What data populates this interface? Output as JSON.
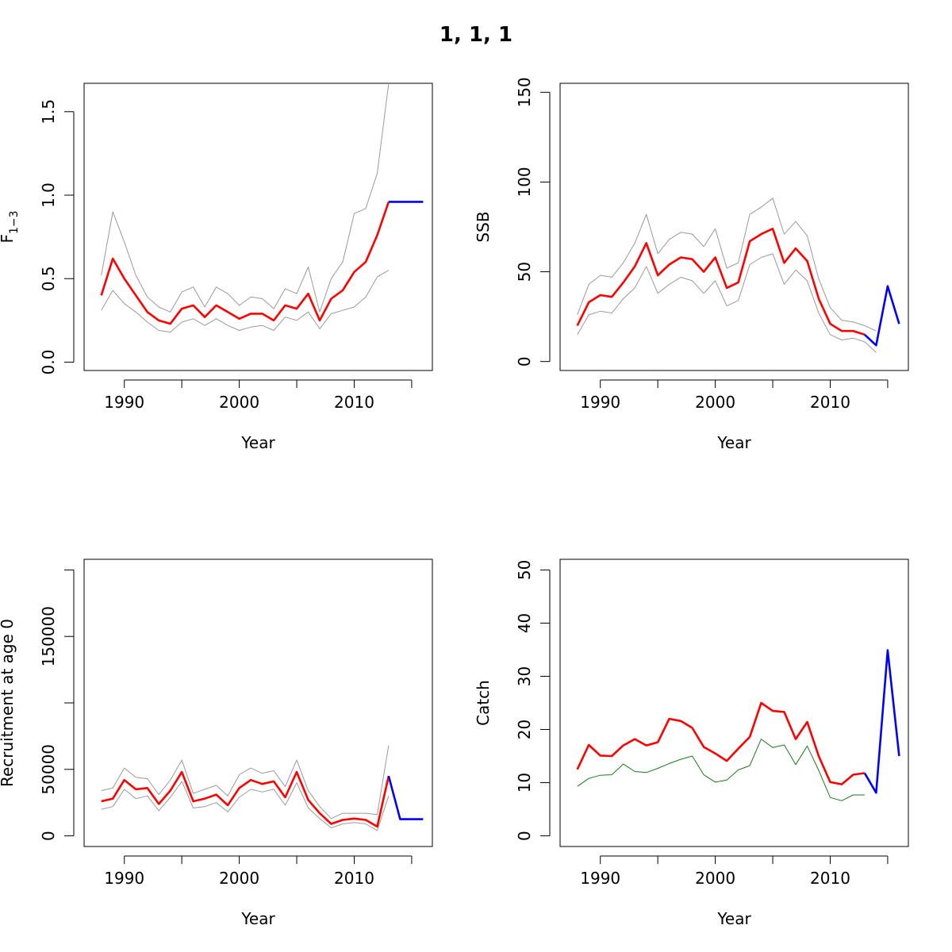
{
  "figure": {
    "title": "1, 1, 1"
  },
  "colors": {
    "estimate": "#ff0000",
    "projection": "#0000ff",
    "ci": "#9a9a9a",
    "observed": "#1a7a1a"
  },
  "chart_data": [
    {
      "type": "line",
      "ylabel": "F",
      "ylabel_sub": "1−3",
      "xlabel": "Year",
      "xlim": [
        1986.5,
        2016.8
      ],
      "ylim": [
        -0.05,
        1.67
      ],
      "xticks": [
        1990,
        1995,
        2000,
        2005,
        2010,
        2015
      ],
      "xtick_labels": [
        "1990",
        "",
        "2000",
        "",
        "2010",
        ""
      ],
      "yticks": [
        0,
        0.5,
        1,
        1.5
      ],
      "ytick_labels": [
        "0.0",
        "0.5",
        "1.0",
        "1.5"
      ],
      "series": [
        {
          "role": "upper",
          "color": "ci",
          "x": [
            1988,
            1989,
            1990,
            1991,
            1992,
            1993,
            1994,
            1995,
            1996,
            1997,
            1998,
            1999,
            2000,
            2001,
            2002,
            2003,
            2004,
            2005,
            2006,
            2007,
            2008,
            2009,
            2010,
            2011,
            2012,
            2013
          ],
          "y": [
            0.52,
            0.9,
            0.72,
            0.52,
            0.39,
            0.33,
            0.3,
            0.42,
            0.45,
            0.33,
            0.45,
            0.41,
            0.34,
            0.39,
            0.38,
            0.32,
            0.44,
            0.41,
            0.57,
            0.3,
            0.5,
            0.6,
            0.89,
            0.92,
            1.13,
            1.67
          ]
        },
        {
          "role": "lower",
          "color": "ci",
          "x": [
            1988,
            1989,
            1990,
            1991,
            1992,
            1993,
            1994,
            1995,
            1996,
            1997,
            1998,
            1999,
            2000,
            2001,
            2002,
            2003,
            2004,
            2005,
            2006,
            2007,
            2008,
            2009,
            2010,
            2011,
            2012,
            2013
          ],
          "y": [
            0.31,
            0.43,
            0.35,
            0.3,
            0.24,
            0.19,
            0.18,
            0.24,
            0.26,
            0.22,
            0.26,
            0.22,
            0.19,
            0.21,
            0.22,
            0.19,
            0.27,
            0.25,
            0.3,
            0.2,
            0.29,
            0.31,
            0.33,
            0.39,
            0.51,
            0.55
          ]
        },
        {
          "role": "estimate",
          "color": "estimate",
          "x": [
            1988,
            1989,
            1990,
            1991,
            1992,
            1993,
            1994,
            1995,
            1996,
            1997,
            1998,
            1999,
            2000,
            2001,
            2002,
            2003,
            2004,
            2005,
            2006,
            2007,
            2008,
            2009,
            2010,
            2011,
            2012,
            2013
          ],
          "y": [
            0.4,
            0.62,
            0.5,
            0.4,
            0.3,
            0.25,
            0.23,
            0.32,
            0.34,
            0.27,
            0.34,
            0.3,
            0.26,
            0.29,
            0.29,
            0.25,
            0.34,
            0.32,
            0.41,
            0.25,
            0.38,
            0.43,
            0.54,
            0.6,
            0.76,
            0.96
          ]
        },
        {
          "role": "projection",
          "color": "projection",
          "x": [
            2013,
            2014,
            2015,
            2016
          ],
          "y": [
            0.96,
            0.96,
            0.96,
            0.96
          ]
        }
      ]
    },
    {
      "type": "line",
      "ylabel": "SSB",
      "xlabel": "Year",
      "xlim": [
        1986.5,
        2016.8
      ],
      "ylim": [
        -5,
        155
      ],
      "xticks": [
        1990,
        1995,
        2000,
        2005,
        2010,
        2015
      ],
      "xtick_labels": [
        "1990",
        "",
        "2000",
        "",
        "2010",
        ""
      ],
      "yticks": [
        0,
        50,
        100,
        150
      ],
      "ytick_labels": [
        "0",
        "50",
        "100",
        "150"
      ],
      "series": [
        {
          "role": "upper",
          "color": "ci",
          "x": [
            1988,
            1989,
            1990,
            1991,
            1992,
            1993,
            1994,
            1995,
            1996,
            1997,
            1998,
            1999,
            2000,
            2001,
            2002,
            2003,
            2004,
            2005,
            2006,
            2007,
            2008,
            2009,
            2010,
            2011,
            2012,
            2013,
            2014
          ],
          "y": [
            26,
            43,
            48,
            47,
            55,
            66,
            82,
            60,
            68,
            72,
            71,
            64,
            74,
            52,
            55,
            82,
            86,
            91,
            71,
            78,
            70,
            46,
            30,
            23,
            22,
            20,
            17
          ]
        },
        {
          "role": "lower",
          "color": "ci",
          "x": [
            1988,
            1989,
            1990,
            1991,
            1992,
            1993,
            1994,
            1995,
            1996,
            1997,
            1998,
            1999,
            2000,
            2001,
            2002,
            2003,
            2004,
            2005,
            2006,
            2007,
            2008,
            2009,
            2010,
            2011,
            2012,
            2013,
            2014
          ],
          "y": [
            15,
            26,
            28,
            27,
            35,
            41,
            53,
            38,
            43,
            47,
            45,
            38,
            45,
            31,
            34,
            54,
            58,
            60,
            43,
            51,
            45,
            27,
            15,
            12,
            13,
            11,
            5
          ]
        },
        {
          "role": "estimate",
          "color": "estimate",
          "x": [
            1988,
            1989,
            1990,
            1991,
            1992,
            1993,
            1994,
            1995,
            1996,
            1997,
            1998,
            1999,
            2000,
            2001,
            2002,
            2003,
            2004,
            2005,
            2006,
            2007,
            2008,
            2009,
            2010,
            2011,
            2012,
            2013
          ],
          "y": [
            20,
            33,
            37,
            36,
            44,
            53,
            66,
            48,
            54,
            58,
            57,
            50,
            58,
            41,
            44,
            67,
            71,
            74,
            55,
            63,
            56,
            35,
            21,
            17,
            17,
            15
          ]
        },
        {
          "role": "projection",
          "color": "projection",
          "x": [
            2013,
            2014,
            2015,
            2016
          ],
          "y": [
            15,
            9,
            42,
            21
          ]
        }
      ]
    },
    {
      "type": "line",
      "ylabel": "Recruitment at age 0",
      "xlabel": "Year",
      "xlim": [
        1986.5,
        2016.8
      ],
      "ylim": [
        -8000,
        208000
      ],
      "xticks": [
        1990,
        1995,
        2000,
        2005,
        2010,
        2015
      ],
      "xtick_labels": [
        "1990",
        "",
        "2000",
        "",
        "2010",
        ""
      ],
      "yticks": [
        0,
        50000,
        100000,
        150000,
        200000
      ],
      "ytick_labels": [
        "0",
        "50000",
        "",
        "150000",
        ""
      ],
      "series": [
        {
          "role": "upper",
          "color": "ci",
          "x": [
            1988,
            1989,
            1990,
            1991,
            1992,
            1993,
            1994,
            1995,
            1996,
            1997,
            1998,
            1999,
            2000,
            2001,
            2002,
            2003,
            2004,
            2005,
            2006,
            2007,
            2008,
            2009,
            2010,
            2011,
            2012,
            2013
          ],
          "y": [
            34000,
            36000,
            51000,
            44000,
            43000,
            31000,
            42000,
            57000,
            32000,
            35000,
            38000,
            30000,
            46000,
            51000,
            47000,
            49000,
            37000,
            57000,
            34000,
            22000,
            13000,
            17000,
            17000,
            17000,
            16000,
            68000
          ]
        },
        {
          "role": "lower",
          "color": "ci",
          "x": [
            1988,
            1989,
            1990,
            1991,
            1992,
            1993,
            1994,
            1995,
            1996,
            1997,
            1998,
            1999,
            2000,
            2001,
            2002,
            2003,
            2004,
            2005,
            2006,
            2007,
            2008,
            2009,
            2010,
            2011,
            2012,
            2013
          ],
          "y": [
            20000,
            22000,
            35000,
            28000,
            30000,
            19000,
            29000,
            41000,
            21000,
            22000,
            25000,
            18000,
            29000,
            35000,
            33000,
            35000,
            23000,
            40000,
            21000,
            13000,
            6000,
            9000,
            10000,
            9000,
            4000,
            30000
          ]
        },
        {
          "role": "estimate",
          "color": "estimate",
          "x": [
            1988,
            1989,
            1990,
            1991,
            1992,
            1993,
            1994,
            1995,
            1996,
            1997,
            1998,
            1999,
            2000,
            2001,
            2002,
            2003,
            2004,
            2005,
            2006,
            2007,
            2008,
            2009,
            2010,
            2011,
            2012,
            2013
          ],
          "y": [
            26000,
            28000,
            42000,
            35000,
            36000,
            24000,
            34000,
            48000,
            26000,
            28000,
            31000,
            23000,
            36000,
            42000,
            39000,
            41000,
            29000,
            48000,
            27000,
            17000,
            9000,
            12000,
            13000,
            12000,
            7000,
            45000
          ]
        },
        {
          "role": "projection",
          "color": "projection",
          "x": [
            2013,
            2014,
            2015,
            2016
          ],
          "y": [
            45000,
            12500,
            12500,
            12500
          ]
        }
      ]
    },
    {
      "type": "line",
      "ylabel": "Catch",
      "xlabel": "Year",
      "xlim": [
        1986.5,
        2016.8
      ],
      "ylim": [
        -2,
        52
      ],
      "xticks": [
        1990,
        1995,
        2000,
        2005,
        2010,
        2015
      ],
      "xtick_labels": [
        "1990",
        "",
        "2000",
        "",
        "2010",
        ""
      ],
      "yticks": [
        0,
        10,
        20,
        30,
        40,
        50
      ],
      "ytick_labels": [
        "0",
        "10",
        "20",
        "30",
        "40",
        "50"
      ],
      "series": [
        {
          "role": "observed",
          "color": "observed",
          "x": [
            1988,
            1989,
            1990,
            1991,
            1992,
            1993,
            1994,
            1995,
            1996,
            1997,
            1998,
            1999,
            2000,
            2001,
            2002,
            2003,
            2004,
            2005,
            2006,
            2007,
            2008,
            2009,
            2010,
            2011,
            2012,
            2013
          ],
          "y": [
            9.3,
            10.8,
            11.4,
            11.5,
            13.5,
            12.1,
            11.9,
            12.7,
            13.6,
            14.4,
            15.0,
            11.5,
            10.1,
            10.5,
            12.4,
            13.2,
            18.2,
            16.6,
            17.1,
            13.4,
            16.9,
            12.3,
            7.2,
            6.6,
            7.7,
            7.7
          ]
        },
        {
          "role": "estimate",
          "color": "estimate",
          "x": [
            1988,
            1989,
            1990,
            1991,
            1992,
            1993,
            1994,
            1995,
            1996,
            1997,
            1998,
            1999,
            2000,
            2001,
            2002,
            2003,
            2004,
            2005,
            2006,
            2007,
            2008,
            2009,
            2010,
            2011,
            2012,
            2013
          ],
          "y": [
            12.5,
            17.1,
            15.1,
            15.0,
            17.0,
            18.2,
            17.0,
            17.6,
            22.0,
            21.6,
            20.3,
            16.7,
            15.5,
            14.1,
            16.4,
            18.6,
            25.0,
            23.5,
            23.3,
            18.2,
            21.4,
            15.0,
            10.1,
            9.7,
            11.5,
            11.8
          ]
        },
        {
          "role": "projection",
          "color": "projection",
          "x": [
            2013,
            2014,
            2015,
            2016
          ],
          "y": [
            11.8,
            8.1,
            34.9,
            15.0
          ]
        }
      ]
    }
  ]
}
